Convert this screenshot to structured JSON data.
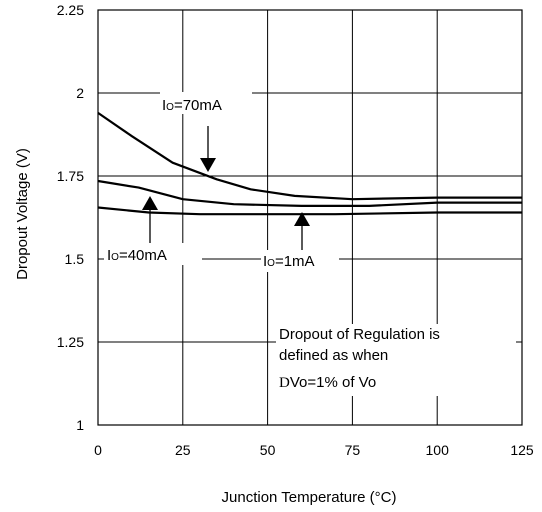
{
  "chart_data": {
    "type": "line",
    "title": "",
    "xlabel": "Junction Temperature (°C)",
    "ylabel": "Dropout Voltage (V)",
    "xlim": [
      0,
      125
    ],
    "ylim": [
      1,
      2.25
    ],
    "x_ticks": [
      "0",
      "25",
      "50",
      "75",
      "100",
      "125"
    ],
    "y_ticks": [
      "1",
      "1.25",
      "1.5",
      "1.75",
      "2",
      "2.25"
    ],
    "grid": true,
    "series": [
      {
        "name": "Io=70mA",
        "x": [
          0,
          10,
          22,
          35,
          45,
          58,
          75,
          100,
          125
        ],
        "y": [
          1.94,
          1.87,
          1.79,
          1.74,
          1.71,
          1.69,
          1.68,
          1.685,
          1.685
        ]
      },
      {
        "name": "Io=40mA",
        "x": [
          0,
          12,
          25,
          40,
          60,
          80,
          100,
          125
        ],
        "y": [
          1.735,
          1.715,
          1.68,
          1.665,
          1.66,
          1.66,
          1.67,
          1.67
        ]
      },
      {
        "name": "Io=1mA",
        "x": [
          0,
          15,
          30,
          50,
          70,
          100,
          125
        ],
        "y": [
          1.655,
          1.64,
          1.635,
          1.635,
          1.635,
          1.64,
          1.64
        ]
      }
    ],
    "annotations": {
      "io70": {
        "main": "I",
        "sub": "O",
        "rest": "=70mA"
      },
      "io40": {
        "main": "I",
        "sub": "O",
        "rest": "=40mA"
      },
      "io1": {
        "main": "I",
        "sub": "O",
        "rest": "=1mA"
      },
      "note_line1": "Dropout of Regulation is",
      "note_line2": "defined as when",
      "note_line3_prefix": "D",
      "note_line3_rest": "Vo=1% of Vo"
    }
  }
}
